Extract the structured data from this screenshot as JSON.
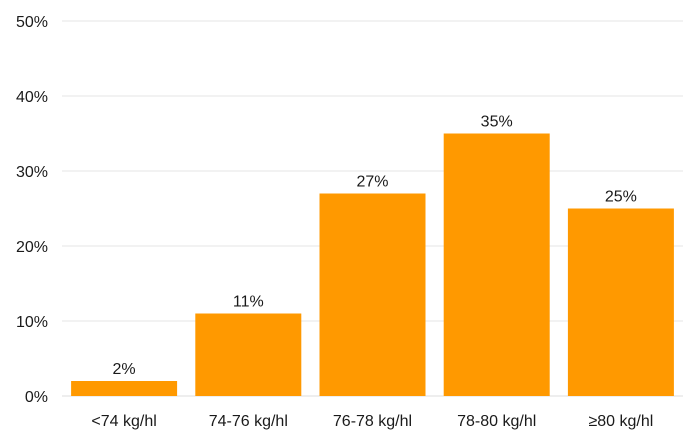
{
  "chart_data": {
    "type": "bar",
    "categories": [
      "<74 kg/hl",
      "74-76 kg/hl",
      "76-78 kg/hl",
      "78-80 kg/hl",
      "≥80 kg/hl"
    ],
    "values": [
      2,
      11,
      27,
      35,
      25
    ],
    "data_labels": [
      "2%",
      "11%",
      "27%",
      "35%",
      "25%"
    ],
    "y_ticks": [
      "0%",
      "10%",
      "20%",
      "30%",
      "40%",
      "50%"
    ],
    "y_tick_values": [
      0,
      10,
      20,
      30,
      40,
      50
    ],
    "ylim": [
      0,
      50
    ],
    "title": "",
    "xlabel": "",
    "ylabel": "",
    "grid": true,
    "legend": "none",
    "bar_color": "#ff9900"
  }
}
